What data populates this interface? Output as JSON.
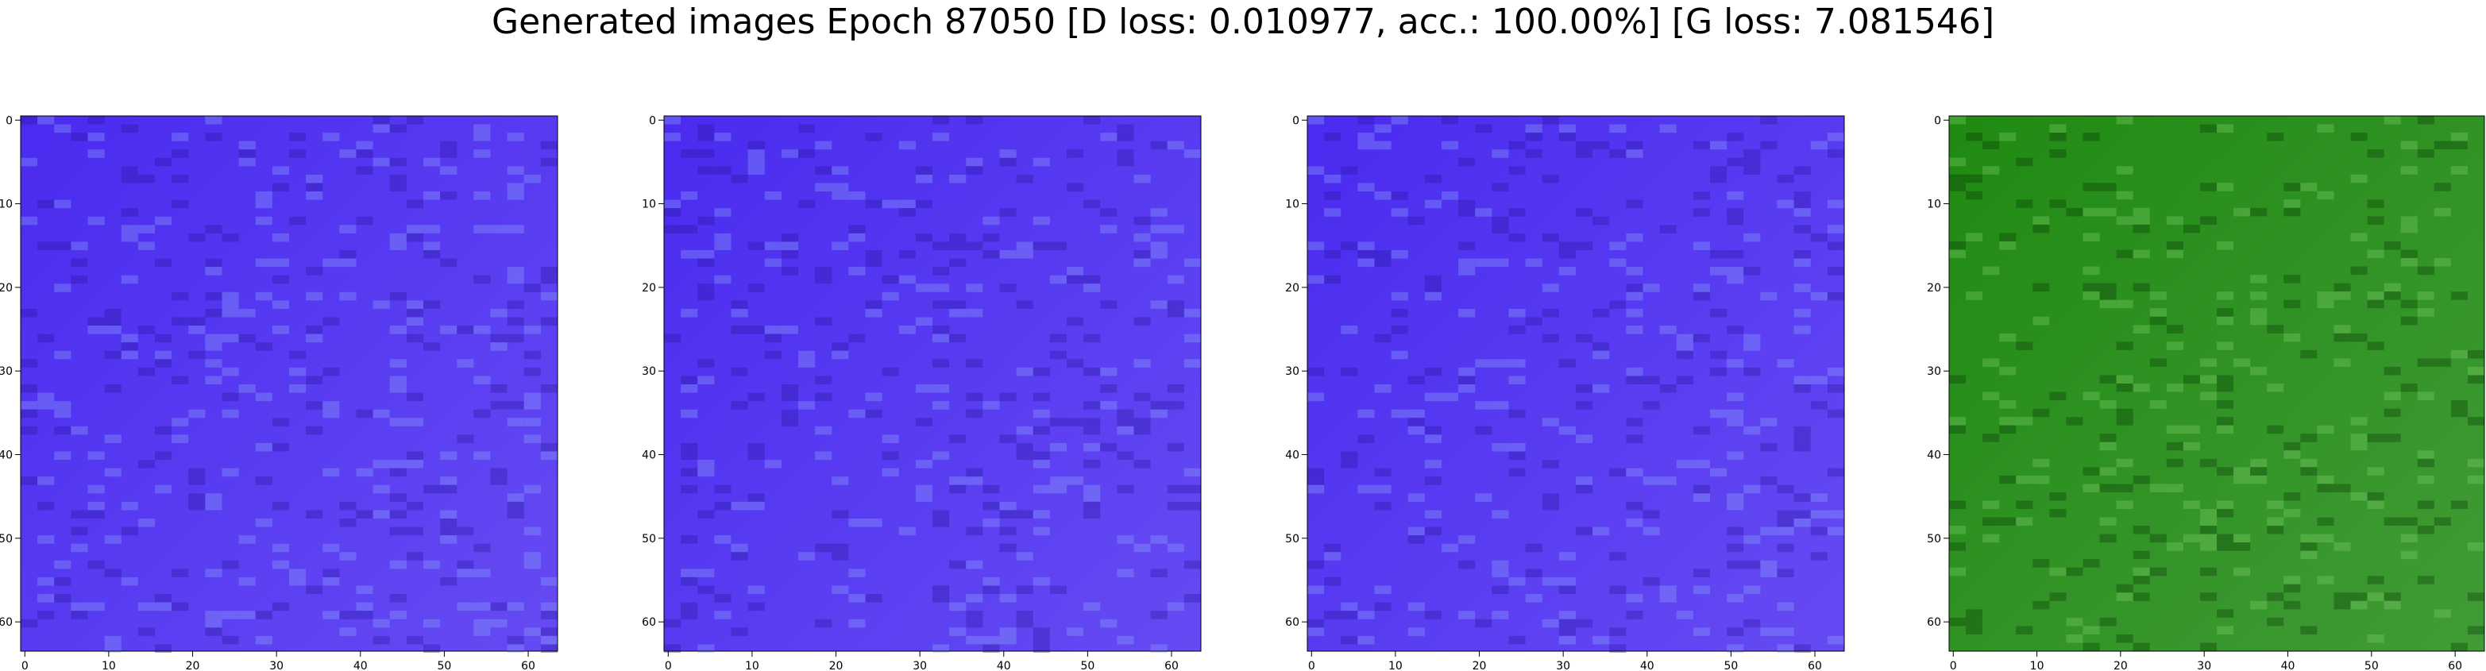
{
  "title": "Generated images Epoch 87050 [D loss: 0.010977, acc.: 100.00%] [G loss: 7.081546]",
  "chart_data": [
    {
      "type": "heatmap",
      "title": "",
      "xlabel": "",
      "ylabel": "",
      "xlim": [
        -0.5,
        63.5
      ],
      "ylim": [
        63.5,
        -0.5
      ],
      "xticks": [
        0,
        10,
        20,
        30,
        40,
        50,
        60
      ],
      "yticks": [
        0,
        10,
        20,
        30,
        40,
        50,
        60
      ],
      "base_color": "#4a2bf0",
      "grid": false
    },
    {
      "type": "heatmap",
      "title": "",
      "xlabel": "",
      "ylabel": "",
      "xlim": [
        -0.5,
        63.5
      ],
      "ylim": [
        63.5,
        -0.5
      ],
      "xticks": [
        0,
        10,
        20,
        30,
        40,
        50,
        60
      ],
      "yticks": [
        0,
        10,
        20,
        30,
        40,
        50,
        60
      ],
      "base_color": "#4a2bf0",
      "grid": false
    },
    {
      "type": "heatmap",
      "title": "",
      "xlabel": "",
      "ylabel": "",
      "xlim": [
        -0.5,
        63.5
      ],
      "ylim": [
        63.5,
        -0.5
      ],
      "xticks": [
        0,
        10,
        20,
        30,
        40,
        50,
        60
      ],
      "yticks": [
        0,
        10,
        20,
        30,
        40,
        50,
        60
      ],
      "base_color": "#4a2bf0",
      "grid": false
    },
    {
      "type": "heatmap",
      "title": "",
      "xlabel": "",
      "ylabel": "",
      "xlim": [
        -0.5,
        63.5
      ],
      "ylim": [
        63.5,
        -0.5
      ],
      "xticks": [
        0,
        10,
        20,
        30,
        40,
        50,
        60
      ],
      "yticks": [
        0,
        10,
        20,
        30,
        40,
        50,
        60
      ],
      "base_color": "#1f8a12",
      "grid": false
    }
  ]
}
